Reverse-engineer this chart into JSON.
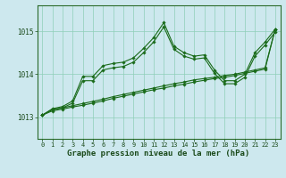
{
  "title": "Graphe pression niveau de la mer (hPa)",
  "bg_color": "#cde8ee",
  "grid_color": "#8fcfb8",
  "line_color": "#1a6b1a",
  "marker_color": "#1a6b1a",
  "xlim": [
    -0.5,
    23.5
  ],
  "ylim": [
    1012.5,
    1015.6
  ],
  "yticks": [
    1013,
    1014,
    1015
  ],
  "xticks": [
    0,
    1,
    2,
    3,
    4,
    5,
    6,
    7,
    8,
    9,
    10,
    11,
    12,
    13,
    14,
    15,
    16,
    17,
    18,
    19,
    20,
    21,
    22,
    23
  ],
  "series1_x": [
    0,
    1,
    2,
    3,
    4,
    5,
    6,
    7,
    8,
    9,
    10,
    11,
    12,
    13,
    14,
    15,
    16,
    17,
    18,
    19,
    20,
    21,
    22,
    23
  ],
  "series1_y": [
    1013.05,
    1013.2,
    1013.25,
    1013.38,
    1013.95,
    1013.95,
    1014.2,
    1014.25,
    1014.28,
    1014.38,
    1014.6,
    1014.85,
    1015.2,
    1014.65,
    1014.5,
    1014.42,
    1014.45,
    1014.1,
    1013.85,
    1013.85,
    1014.0,
    1014.5,
    1014.75,
    1015.05
  ],
  "series2_x": [
    0,
    1,
    2,
    3,
    4,
    5,
    6,
    7,
    8,
    9,
    10,
    11,
    12,
    13,
    14,
    15,
    16,
    17,
    18,
    19,
    20,
    21,
    22,
    23
  ],
  "series2_y": [
    1013.05,
    1013.18,
    1013.22,
    1013.33,
    1013.85,
    1013.85,
    1014.1,
    1014.15,
    1014.18,
    1014.28,
    1014.5,
    1014.75,
    1015.1,
    1014.58,
    1014.42,
    1014.35,
    1014.38,
    1014.02,
    1013.78,
    1013.78,
    1013.93,
    1014.42,
    1014.68,
    1014.98
  ],
  "series3_x": [
    0,
    1,
    2,
    3,
    4,
    5,
    6,
    7,
    8,
    9,
    10,
    11,
    12,
    13,
    14,
    15,
    16,
    17,
    18,
    19,
    20,
    21,
    22,
    23
  ],
  "series3_y": [
    1013.05,
    1013.18,
    1013.22,
    1013.27,
    1013.32,
    1013.37,
    1013.42,
    1013.48,
    1013.53,
    1013.58,
    1013.63,
    1013.68,
    1013.73,
    1013.78,
    1013.82,
    1013.87,
    1013.9,
    1013.93,
    1013.97,
    1014.0,
    1014.05,
    1014.1,
    1014.15,
    1015.05
  ],
  "series4_x": [
    0,
    1,
    2,
    3,
    4,
    5,
    6,
    7,
    8,
    9,
    10,
    11,
    12,
    13,
    14,
    15,
    16,
    17,
    18,
    19,
    20,
    21,
    22,
    23
  ],
  "series4_y": [
    1013.05,
    1013.15,
    1013.19,
    1013.24,
    1013.28,
    1013.33,
    1013.38,
    1013.44,
    1013.49,
    1013.54,
    1013.59,
    1013.64,
    1013.68,
    1013.73,
    1013.77,
    1013.82,
    1013.86,
    1013.9,
    1013.93,
    1013.97,
    1014.02,
    1014.07,
    1014.12,
    1015.05
  ],
  "xlabel_fontsize": 6.5,
  "tick_fontsize": 5,
  "ylabel_fontsize": 6
}
